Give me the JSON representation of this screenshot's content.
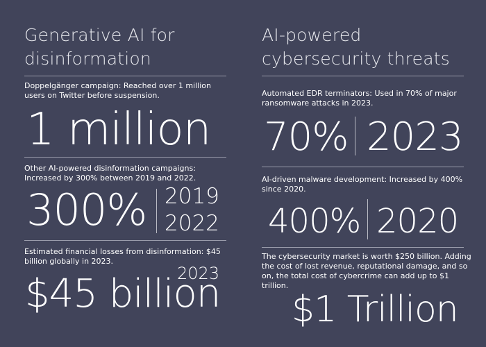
{
  "left": {
    "title": "Generative AI for disinformation",
    "items": [
      {
        "desc": "Doppelgänger campaign: Reached over 1 million users on Twitter before suspension.",
        "figure": "1 million"
      },
      {
        "desc": "Other AI-powered disinformation campaigns: Increased by 300% between 2019 and 2022.",
        "figure": "300%",
        "year_a": "2019",
        "year_b": "2022"
      },
      {
        "desc": "Estimated financial losses from disinformation: $45 billion globally in 2023.",
        "figure": "$45 billion",
        "year": "2023"
      }
    ]
  },
  "right": {
    "title": "AI-powered cybersecurity threats",
    "items": [
      {
        "desc": "Automated EDR terminators: Used in 70% of major ransomware attacks in 2023.",
        "figure": "70%",
        "year": "2023"
      },
      {
        "desc": "AI-driven malware development: Increased by 400% since 2020.",
        "figure": "400%",
        "year": "2020"
      },
      {
        "desc": "The cybersecurity market is worth $250 billion. Adding the cost of lost revenue, reputational damage, and so on, the total cost of cybercrime can add up to $1 trillion.",
        "figure": "$1 Trillion"
      }
    ]
  },
  "colors": {
    "background": "#41445a",
    "text": "#ffffff",
    "rule": "#9a9cab"
  }
}
